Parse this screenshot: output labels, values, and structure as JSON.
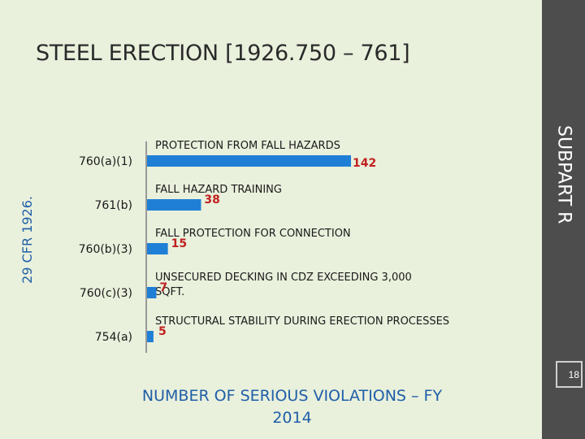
{
  "title": "STEEL ERECTION [1926.750 – 761]",
  "side_label": "SUBPART R",
  "axis_label": "29 CFR 1926.",
  "page_number": "18",
  "footer": "NUMBER OF SERIOUS VIOLATIONS – FY 2014",
  "colors": {
    "bar": "#1f7fd6",
    "value": "#c0211f",
    "axis_text": "#1f5fa8"
  },
  "chart_data": {
    "type": "bar",
    "orientation": "horizontal",
    "categories": [
      "760(a)(1)",
      "761(b)",
      "760(b)(3)",
      "760(c)(3)",
      "754(a)"
    ],
    "descriptions": [
      [
        "PROTECTION FROM FALL HAZARDS"
      ],
      [
        "FALL HAZARD TRAINING"
      ],
      [
        "FALL PROTECTION FOR CONNECTION"
      ],
      [
        "UNSECURED DECKING IN CDZ EXCEEDING 3,000",
        "SQFT."
      ],
      [
        "STRUCTURAL STABILITY DURING ERECTION PROCESSES"
      ]
    ],
    "values": [
      142,
      38,
      15,
      7,
      5
    ],
    "xlim": [
      0,
      142
    ],
    "grid": false
  }
}
